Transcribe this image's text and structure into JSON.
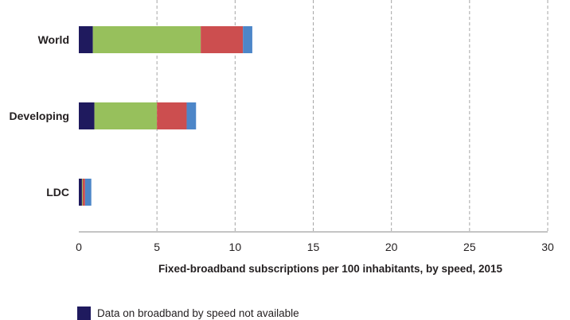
{
  "chart_data": {
    "type": "bar",
    "orientation": "horizontal",
    "stacked": true,
    "categories": [
      "World",
      "Developing",
      "LDC"
    ],
    "series": [
      {
        "name": "Data on broadband by speed not available",
        "color": "#1f1a5e",
        "values": [
          0.9,
          1.0,
          0.2
        ]
      },
      {
        "color": "#97c05c",
        "values": [
          6.9,
          4.0,
          0.05
        ]
      },
      {
        "color": "#cc4e4f",
        "values": [
          2.7,
          1.9,
          0.15
        ]
      },
      {
        "color": "#4d86c8",
        "values": [
          0.6,
          0.6,
          0.4
        ]
      }
    ],
    "xticks": [
      "0",
      "5",
      "10",
      "15",
      "20",
      "25",
      "30"
    ],
    "xlim": [
      0,
      30
    ],
    "xlabel": "Fixed-broadband subscriptions per 100 inhabitants, by speed, 2015",
    "grid": "vertical dashed",
    "legend_position": "bottom"
  },
  "legend": [
    {
      "label": "Data on broadband by speed not available",
      "color": "#1f1a5e"
    }
  ]
}
